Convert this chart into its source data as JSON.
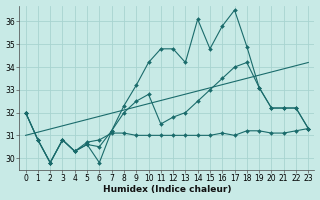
{
  "xlabel": "Humidex (Indice chaleur)",
  "ylabel": "",
  "background_color": "#c8eae6",
  "grid_color": "#a8d4d0",
  "line_color": "#1a6b6b",
  "xlim": [
    -0.5,
    23.5
  ],
  "ylim": [
    29.5,
    36.7
  ],
  "yticks": [
    30,
    31,
    32,
    33,
    34,
    35,
    36
  ],
  "xticks": [
    0,
    1,
    2,
    3,
    4,
    5,
    6,
    7,
    8,
    9,
    10,
    11,
    12,
    13,
    14,
    15,
    16,
    17,
    18,
    19,
    20,
    21,
    22,
    23
  ],
  "series": [
    {
      "x": [
        0,
        1,
        2,
        3,
        4,
        5,
        6,
        7,
        8,
        9,
        10,
        11,
        12,
        13,
        14,
        15,
        16,
        17,
        18,
        19,
        20,
        21,
        22,
        23
      ],
      "y": [
        32.0,
        30.8,
        29.8,
        30.8,
        30.3,
        30.7,
        30.8,
        31.1,
        31.1,
        31.0,
        31.0,
        31.0,
        31.0,
        31.0,
        31.0,
        31.0,
        31.1,
        31.0,
        31.2,
        31.2,
        31.1,
        31.1,
        31.2,
        31.3
      ],
      "marker": "D",
      "markersize": 2,
      "linewidth": 0.8
    },
    {
      "x": [
        0,
        1,
        2,
        3,
        4,
        5,
        6,
        7,
        8,
        9,
        10,
        11,
        12,
        13,
        14,
        15,
        16,
        17,
        18,
        19,
        20,
        21,
        22,
        23
      ],
      "y": [
        32.0,
        30.8,
        29.8,
        30.8,
        30.3,
        30.6,
        29.8,
        31.2,
        32.3,
        33.2,
        34.2,
        34.8,
        34.8,
        34.2,
        36.1,
        34.8,
        35.8,
        36.5,
        34.9,
        33.1,
        32.2,
        32.2,
        32.2,
        31.3
      ],
      "marker": "D",
      "markersize": 2,
      "linewidth": 0.8
    },
    {
      "x": [
        0,
        1,
        2,
        3,
        4,
        5,
        6,
        7,
        8,
        9,
        10,
        11,
        12,
        13,
        14,
        15,
        16,
        17,
        18,
        19,
        20,
        21,
        22,
        23
      ],
      "y": [
        32.0,
        30.8,
        29.8,
        30.8,
        30.3,
        30.6,
        30.5,
        31.2,
        32.0,
        32.5,
        32.8,
        31.5,
        31.8,
        32.0,
        32.5,
        33.0,
        33.5,
        34.0,
        34.2,
        33.1,
        32.2,
        32.2,
        32.2,
        31.3
      ],
      "marker": "D",
      "markersize": 2,
      "linewidth": 0.8
    },
    {
      "x": [
        0,
        23
      ],
      "y": [
        31.0,
        34.2
      ],
      "marker": null,
      "markersize": 0,
      "linewidth": 0.8
    }
  ]
}
